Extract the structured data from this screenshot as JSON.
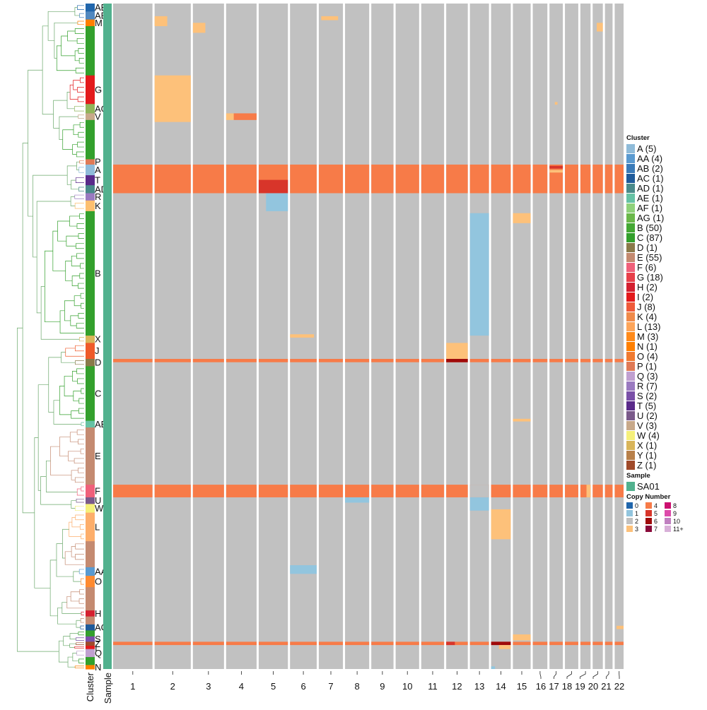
{
  "chart_data": {
    "type": "heatmap",
    "title": "",
    "row_annotations": {
      "cluster_axis_label": "Cluster",
      "sample_axis_label": "Sample",
      "cluster_blocks": [
        {
          "label": "AB",
          "color": "#2166ac",
          "start": 0.0,
          "end": 0.012
        },
        {
          "label": "AB",
          "color": "#5088c0",
          "start": 0.012,
          "end": 0.024
        },
        {
          "label": "M",
          "color": "#ff7f00",
          "start": 0.024,
          "end": 0.034
        },
        {
          "label": "",
          "color": "#33a02c",
          "start": 0.034,
          "end": 0.108
        },
        {
          "label": "G",
          "color": "#e31a1c",
          "start": 0.108,
          "end": 0.151
        },
        {
          "label": "AG",
          "color": "#8fb55a",
          "start": 0.151,
          "end": 0.165
        },
        {
          "label": "V",
          "color": "#c8a98a",
          "start": 0.165,
          "end": 0.175
        },
        {
          "label": "",
          "color": "#33a02c",
          "start": 0.175,
          "end": 0.234
        },
        {
          "label": "P",
          "color": "#e07a56",
          "start": 0.234,
          "end": 0.242
        },
        {
          "label": "A",
          "color": "#8fbbd9",
          "start": 0.242,
          "end": 0.258
        },
        {
          "label": "T",
          "color": "#5a2a8a",
          "start": 0.258,
          "end": 0.273
        },
        {
          "label": "AD",
          "color": "#4a8a8a",
          "start": 0.273,
          "end": 0.285
        },
        {
          "label": "R",
          "color": "#9a7ac0",
          "start": 0.285,
          "end": 0.296
        },
        {
          "label": "K",
          "color": "#fdbf6f",
          "start": 0.296,
          "end": 0.312
        },
        {
          "label": "B",
          "color": "#33a02c",
          "start": 0.312,
          "end": 0.499
        },
        {
          "label": "X",
          "color": "#d9b55a",
          "start": 0.499,
          "end": 0.51
        },
        {
          "label": "J",
          "color": "#ef5a2a",
          "start": 0.51,
          "end": 0.534
        },
        {
          "label": "D",
          "color": "#8a7a4a",
          "start": 0.534,
          "end": 0.545
        },
        {
          "label": "C",
          "color": "#33a02c",
          "start": 0.545,
          "end": 0.627
        },
        {
          "label": "AE",
          "color": "#66c2a4",
          "start": 0.627,
          "end": 0.637
        },
        {
          "label": "E",
          "color": "#c48a70",
          "start": 0.637,
          "end": 0.723
        },
        {
          "label": "F",
          "color": "#f0607a",
          "start": 0.723,
          "end": 0.742
        },
        {
          "label": "U",
          "color": "#7a5a8a",
          "start": 0.742,
          "end": 0.752
        },
        {
          "label": "W",
          "color": "#f5f07a",
          "start": 0.752,
          "end": 0.765
        },
        {
          "label": "L",
          "color": "#fdae6b",
          "start": 0.765,
          "end": 0.808
        },
        {
          "label": "",
          "color": "#c48a70",
          "start": 0.808,
          "end": 0.847
        },
        {
          "label": "AA",
          "color": "#5a9ad0",
          "start": 0.847,
          "end": 0.86
        },
        {
          "label": "O",
          "color": "#ff8a30",
          "start": 0.86,
          "end": 0.877
        },
        {
          "label": "",
          "color": "#c48a70",
          "start": 0.877,
          "end": 0.912
        },
        {
          "label": "H",
          "color": "#d42030",
          "start": 0.912,
          "end": 0.921
        },
        {
          "label": "",
          "color": "#c48a70",
          "start": 0.921,
          "end": 0.933
        },
        {
          "label": "AC",
          "color": "#1f5a9a",
          "start": 0.933,
          "end": 0.942
        },
        {
          "label": "",
          "color": "#33a02c",
          "start": 0.942,
          "end": 0.951
        },
        {
          "label": "S",
          "color": "#7a50a8",
          "start": 0.951,
          "end": 0.959
        },
        {
          "label": "Z",
          "color": "#a04a2a",
          "start": 0.959,
          "end": 0.965
        },
        {
          "label": "I",
          "color": "#e31a1c",
          "start": 0.965,
          "end": 0.97
        },
        {
          "label": "Q",
          "color": "#c0a0d0",
          "start": 0.97,
          "end": 0.982
        },
        {
          "label": "",
          "color": "#33a02c",
          "start": 0.982,
          "end": 0.994
        },
        {
          "label": "N",
          "color": "#ff7f00",
          "start": 0.994,
          "end": 1.0
        }
      ],
      "sample_color": "#52b18e"
    },
    "x": {
      "label": "",
      "chromosomes": [
        "1",
        "2",
        "3",
        "4",
        "5",
        "6",
        "7",
        "8",
        "9",
        "10",
        "11",
        "12",
        "13",
        "14",
        "15",
        "16",
        "17",
        "18",
        "19",
        "20",
        "21",
        "22"
      ],
      "relative_widths": [
        62,
        57,
        49,
        48,
        46,
        42,
        38,
        38,
        35,
        37,
        36,
        34,
        30,
        31,
        28,
        23,
        21,
        21,
        16,
        16,
        12,
        14
      ]
    },
    "copy_number_colors": {
      "0": "#2166ac",
      "1": "#92c5de",
      "2": "#c1c1c1",
      "3": "#fdc17a",
      "4": "#f77b48",
      "5": "#d8352a",
      "6": "#9f0a0a",
      "7": "#8a0a3a",
      "8": "#cc1070",
      "9": "#dd4aaa",
      "10": "#c080c0",
      "11+": "#d8b0d8"
    },
    "default_copy_number": "2",
    "segments": [
      {
        "chr": "2",
        "from": 0.0,
        "to": 0.35,
        "row_from": 0.019,
        "row_to": 0.034,
        "cn": "3"
      },
      {
        "chr": "3",
        "from": 0.0,
        "to": 0.4,
        "row_from": 0.029,
        "row_to": 0.044,
        "cn": "3"
      },
      {
        "chr": "7",
        "from": 0.1,
        "to": 0.8,
        "row_from": 0.019,
        "row_to": 0.025,
        "cn": "3"
      },
      {
        "chr": "20",
        "from": 0.4,
        "to": 1.0,
        "row_from": 0.029,
        "row_to": 0.042,
        "cn": "3"
      },
      {
        "chr": "2",
        "from": 0.0,
        "to": 1.0,
        "row_from": 0.108,
        "row_to": 0.178,
        "cn": "3"
      },
      {
        "chr": "4",
        "from": 0.0,
        "to": 0.25,
        "row_from": 0.165,
        "row_to": 0.175,
        "cn": "3"
      },
      {
        "chr": "4",
        "from": 0.25,
        "to": 1.0,
        "row_from": 0.165,
        "row_to": 0.175,
        "cn": "4"
      },
      {
        "chr": "17",
        "from": 0.4,
        "to": 0.6,
        "row_from": 0.148,
        "row_to": 0.152,
        "cn": "3"
      },
      {
        "chr": "all",
        "from": 0.0,
        "to": 1.0,
        "row_from": 0.242,
        "row_to": 0.285,
        "cn": "4"
      },
      {
        "chr": "5",
        "from": 0.0,
        "to": 1.0,
        "row_from": 0.265,
        "row_to": 0.285,
        "cn": "5"
      },
      {
        "chr": "17",
        "from": 0.0,
        "to": 1.0,
        "row_from": 0.244,
        "row_to": 0.248,
        "cn": "5"
      },
      {
        "chr": "17",
        "from": 0.0,
        "to": 1.0,
        "row_from": 0.25,
        "row_to": 0.254,
        "cn": "3"
      },
      {
        "chr": "5",
        "from": 0.25,
        "to": 1.0,
        "row_from": 0.285,
        "row_to": 0.312,
        "cn": "1"
      },
      {
        "chr": "13",
        "from": 0.0,
        "to": 1.0,
        "row_from": 0.315,
        "row_to": 0.499,
        "cn": "1"
      },
      {
        "chr": "15",
        "from": 0.0,
        "to": 1.0,
        "row_from": 0.315,
        "row_to": 0.33,
        "cn": "3"
      },
      {
        "chr": "6",
        "from": 0.0,
        "to": 0.9,
        "row_from": 0.497,
        "row_to": 0.502,
        "cn": "3"
      },
      {
        "chr": "12",
        "from": 0.0,
        "to": 1.0,
        "row_from": 0.51,
        "row_to": 0.534,
        "cn": "3"
      },
      {
        "chr": "all",
        "from": 0.0,
        "to": 1.0,
        "row_from": 0.534,
        "row_to": 0.539,
        "cn": "4"
      },
      {
        "chr": "12",
        "from": 0.0,
        "to": 1.0,
        "row_from": 0.534,
        "row_to": 0.539,
        "cn": "6"
      },
      {
        "chr": "15",
        "from": 0.0,
        "to": 1.0,
        "row_from": 0.624,
        "row_to": 0.628,
        "cn": "3"
      },
      {
        "chr": "all",
        "from": 0.0,
        "to": 1.0,
        "row_from": 0.723,
        "row_to": 0.742,
        "cn": "4"
      },
      {
        "chr": "13",
        "from": 0.0,
        "to": 1.0,
        "row_from": 0.723,
        "row_to": 0.742,
        "cn": "2"
      },
      {
        "chr": "19",
        "from": 0.6,
        "to": 1.0,
        "row_from": 0.723,
        "row_to": 0.742,
        "cn": "3"
      },
      {
        "chr": "8",
        "from": 0.0,
        "to": 1.0,
        "row_from": 0.742,
        "row_to": 0.75,
        "cn": "1"
      },
      {
        "chr": "13",
        "from": 0.0,
        "to": 1.0,
        "row_from": 0.742,
        "row_to": 0.762,
        "cn": "1"
      },
      {
        "chr": "14",
        "from": 0.0,
        "to": 1.0,
        "row_from": 0.76,
        "row_to": 0.805,
        "cn": "3"
      },
      {
        "chr": "6",
        "from": 0.0,
        "to": 1.0,
        "row_from": 0.844,
        "row_to": 0.857,
        "cn": "1"
      },
      {
        "chr": "22",
        "from": 0.2,
        "to": 1.0,
        "row_from": 0.935,
        "row_to": 0.94,
        "cn": "3"
      },
      {
        "chr": "15",
        "from": 0.0,
        "to": 1.0,
        "row_from": 0.948,
        "row_to": 0.957,
        "cn": "3"
      },
      {
        "chr": "all",
        "from": 0.0,
        "to": 1.0,
        "row_from": 0.959,
        "row_to": 0.964,
        "cn": "4"
      },
      {
        "chr": "12",
        "from": 0.0,
        "to": 0.4,
        "row_from": 0.959,
        "row_to": 0.964,
        "cn": "5"
      },
      {
        "chr": "14",
        "from": 0.0,
        "to": 1.0,
        "row_from": 0.959,
        "row_to": 0.964,
        "cn": "6"
      },
      {
        "chr": "14",
        "from": 0.4,
        "to": 1.0,
        "row_from": 0.964,
        "row_to": 0.97,
        "cn": "3"
      },
      {
        "chr": "14",
        "from": 0.0,
        "to": 0.2,
        "row_from": 0.996,
        "row_to": 1.0,
        "cn": "1"
      }
    ],
    "legend": {
      "cluster_title": "Cluster",
      "clusters": [
        {
          "label": "A (5)",
          "color": "#8fbbd9"
        },
        {
          "label": "AA (4)",
          "color": "#5a9ad0"
        },
        {
          "label": "AB (2)",
          "color": "#3a7ab8"
        },
        {
          "label": "AC (1)",
          "color": "#1f5a9a"
        },
        {
          "label": "AD (1)",
          "color": "#4a8a8a"
        },
        {
          "label": "AE (1)",
          "color": "#66c2a4"
        },
        {
          "label": "AF (1)",
          "color": "#8fd17a"
        },
        {
          "label": "AG (1)",
          "color": "#6bb84a"
        },
        {
          "label": "B (50)",
          "color": "#44a834"
        },
        {
          "label": "C (87)",
          "color": "#33a02c"
        },
        {
          "label": "D (1)",
          "color": "#8a7a4a"
        },
        {
          "label": "E (55)",
          "color": "#c48a70"
        },
        {
          "label": "F (6)",
          "color": "#f0607a"
        },
        {
          "label": "G (18)",
          "color": "#e8404a"
        },
        {
          "label": "H (2)",
          "color": "#d42030"
        },
        {
          "label": "I (2)",
          "color": "#e31a1c"
        },
        {
          "label": "J (8)",
          "color": "#ef5a3a"
        },
        {
          "label": "K (4)",
          "color": "#f08a4a"
        },
        {
          "label": "L (13)",
          "color": "#fda55a"
        },
        {
          "label": "M (3)",
          "color": "#ff8a1a"
        },
        {
          "label": "N (1)",
          "color": "#ff7f00"
        },
        {
          "label": "O (4)",
          "color": "#f07a30"
        },
        {
          "label": "P (1)",
          "color": "#e07a56"
        },
        {
          "label": "Q (3)",
          "color": "#c0a0d0"
        },
        {
          "label": "R (7)",
          "color": "#9a7ac0"
        },
        {
          "label": "S (2)",
          "color": "#7a50a8"
        },
        {
          "label": "T (5)",
          "color": "#5a2a8a"
        },
        {
          "label": "U (2)",
          "color": "#7a5a8a"
        },
        {
          "label": "V (3)",
          "color": "#c8a98a"
        },
        {
          "label": "W (4)",
          "color": "#f5f07a"
        },
        {
          "label": "X (1)",
          "color": "#d9b55a"
        },
        {
          "label": "Y (1)",
          "color": "#b8804a"
        },
        {
          "label": "Z (1)",
          "color": "#a04a2a"
        }
      ],
      "sample_title": "Sample",
      "samples": [
        {
          "label": "SA01",
          "color": "#52b18e"
        }
      ],
      "copy_number_title": "Copy Number",
      "copy_number_items": [
        {
          "label": "0",
          "color": "#2166ac"
        },
        {
          "label": "1",
          "color": "#92c5de"
        },
        {
          "label": "2",
          "color": "#c1c1c1"
        },
        {
          "label": "3",
          "color": "#fdc17a"
        },
        {
          "label": "4",
          "color": "#f77b48"
        },
        {
          "label": "5",
          "color": "#d8352a"
        },
        {
          "label": "6",
          "color": "#9f0a0a"
        },
        {
          "label": "7",
          "color": "#8a0a3a"
        },
        {
          "label": "8",
          "color": "#cc1070"
        },
        {
          "label": "9",
          "color": "#dd4aaa"
        },
        {
          "label": "10",
          "color": "#c080c0"
        },
        {
          "label": "11+",
          "color": "#d8b0d8"
        }
      ]
    }
  }
}
